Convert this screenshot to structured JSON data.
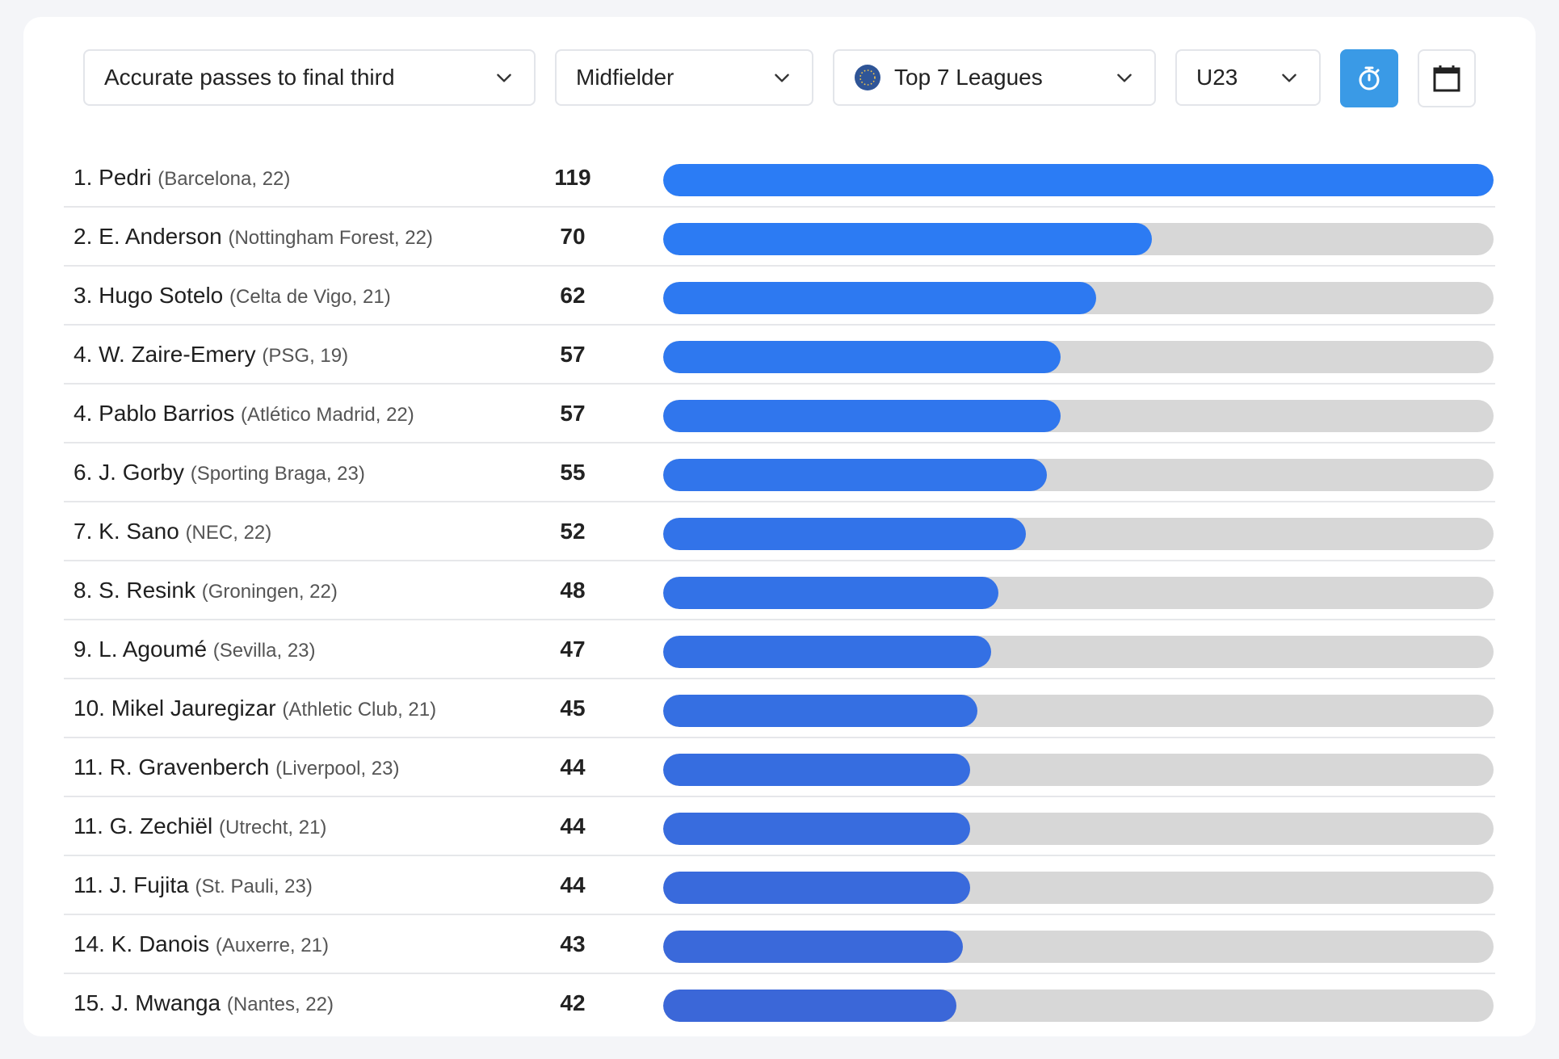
{
  "filters": {
    "metric": "Accurate passes to final third",
    "position": "Midfielder",
    "competition": "Top 7 Leagues",
    "age": "U23"
  },
  "colors": {
    "bar_top": "#2b7cf5",
    "bar_bottom": "#3b67d8",
    "track": "#d7d7d7",
    "active_button": "#3a9ae6"
  },
  "icons": {
    "competition": "globe-icon",
    "timer": "stopwatch-icon",
    "calendar": "calendar-icon",
    "dropdown": "chevron-down-icon"
  },
  "chart_data": {
    "type": "bar",
    "orientation": "horizontal",
    "title": "",
    "xlim": [
      0,
      119
    ],
    "categories": [
      {
        "rank": "1.",
        "name": "Pedri",
        "meta": "(Barcelona, 22)"
      },
      {
        "rank": "2.",
        "name": "E. Anderson",
        "meta": "(Nottingham Forest, 22)"
      },
      {
        "rank": "3.",
        "name": "Hugo Sotelo",
        "meta": "(Celta de Vigo, 21)"
      },
      {
        "rank": "4.",
        "name": "W. Zaire-Emery",
        "meta": "(PSG, 19)"
      },
      {
        "rank": "4.",
        "name": "Pablo Barrios",
        "meta": "(Atlético Madrid, 22)"
      },
      {
        "rank": "6.",
        "name": "J. Gorby",
        "meta": "(Sporting Braga, 23)"
      },
      {
        "rank": "7.",
        "name": "K. Sano",
        "meta": "(NEC, 22)"
      },
      {
        "rank": "8.",
        "name": "S. Resink",
        "meta": "(Groningen, 22)"
      },
      {
        "rank": "9.",
        "name": "L. Agoumé",
        "meta": "(Sevilla, 23)"
      },
      {
        "rank": "10.",
        "name": "Mikel Jauregizar",
        "meta": "(Athletic Club, 21)"
      },
      {
        "rank": "11.",
        "name": "R. Gravenberch",
        "meta": "(Liverpool, 23)"
      },
      {
        "rank": "11.",
        "name": "G. Zechiël",
        "meta": "(Utrecht, 21)"
      },
      {
        "rank": "11.",
        "name": "J. Fujita",
        "meta": "(St. Pauli, 23)"
      },
      {
        "rank": "14.",
        "name": "K. Danois",
        "meta": "(Auxerre, 21)"
      },
      {
        "rank": "15.",
        "name": "J. Mwanga",
        "meta": "(Nantes, 22)"
      }
    ],
    "values": [
      119,
      70,
      62,
      57,
      57,
      55,
      52,
      48,
      47,
      45,
      44,
      44,
      44,
      43,
      42
    ]
  }
}
